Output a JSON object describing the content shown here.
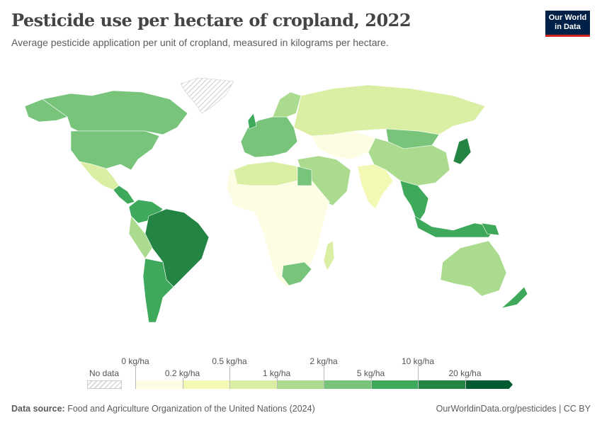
{
  "header": {
    "title": "Pesticide use per hectare of cropland, 2022",
    "subtitle": "Average pesticide application per unit of cropland, measured in kilograms per hectare.",
    "logo": "Our World in Data"
  },
  "logo_lines": [
    "Our World",
    "in Data"
  ],
  "legend": {
    "no_data_label": "No data",
    "bins": [
      {
        "label": "0 kg/ha",
        "color": "#fdfde3"
      },
      {
        "label": "0.2 kg/ha",
        "color": "#f3f8b5"
      },
      {
        "label": "0.5 kg/ha",
        "color": "#dbefa4"
      },
      {
        "label": "1 kg/ha",
        "color": "#aadb8e"
      },
      {
        "label": "2 kg/ha",
        "color": "#78c47b"
      },
      {
        "label": "5 kg/ha",
        "color": "#3fa95b"
      },
      {
        "label": "10 kg/ha",
        "color": "#238443"
      },
      {
        "label": "20 kg/ha",
        "color": "#005c30"
      }
    ]
  },
  "footer": {
    "source_label": "Data source:",
    "source": "Food and Agriculture Organization of the United Nations (2024)",
    "link": "OurWorldinData.org/pesticides | CC BY"
  }
}
